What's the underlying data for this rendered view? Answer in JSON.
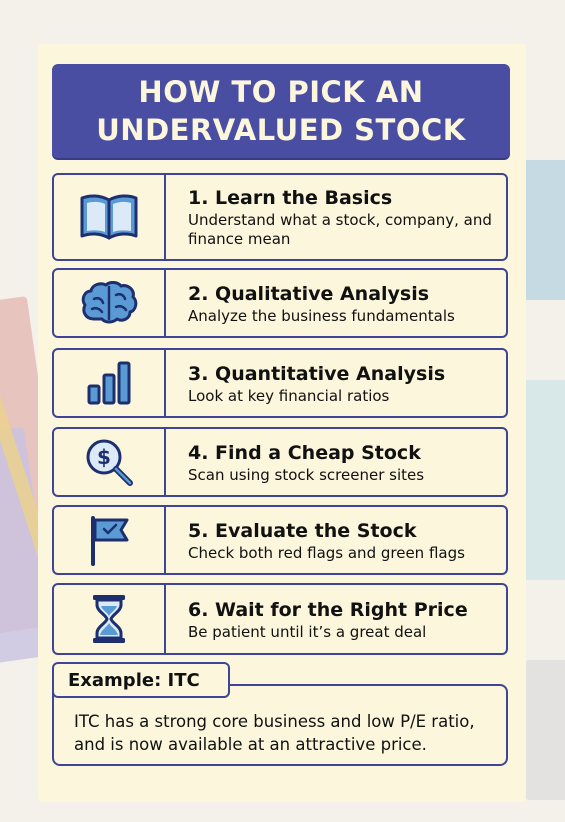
{
  "title": {
    "line1": "HOW TO PICK AN",
    "line2": "UNDERVALUED STOCK"
  },
  "steps": [
    {
      "heading": "1.  Learn the Basics",
      "description": "Understand what a stock, company, and finance mean",
      "icon": "book-icon"
    },
    {
      "heading": "2.  Qualitative Analysis",
      "description": "Analyze the business fundamentals",
      "icon": "brain-icon"
    },
    {
      "heading": "3.  Quantitative Analysis",
      "description": "Look at key financial ratios",
      "icon": "bar-chart-icon"
    },
    {
      "heading": "4.  Find a Cheap Stock",
      "description": "Scan using stock screener sites",
      "icon": "dollar-magnifier-icon"
    },
    {
      "heading": "5.  Evaluate the Stock",
      "description": "Check both red flags and green flags",
      "icon": "flag-icon"
    },
    {
      "heading": "6.  Wait for the Right Price",
      "description": "Be patient until it’s a great deal",
      "icon": "hourglass-icon"
    }
  ],
  "example": {
    "label": "Example: ITC",
    "text": "ITC has a strong core business and low P/E ratio, and is now available at an attractive price."
  },
  "colors": {
    "title_bg": "#4a4ea3",
    "card_bg": "#fbf6dc",
    "accent": "#3f4596",
    "icon_fill": "#5b9bd5"
  }
}
